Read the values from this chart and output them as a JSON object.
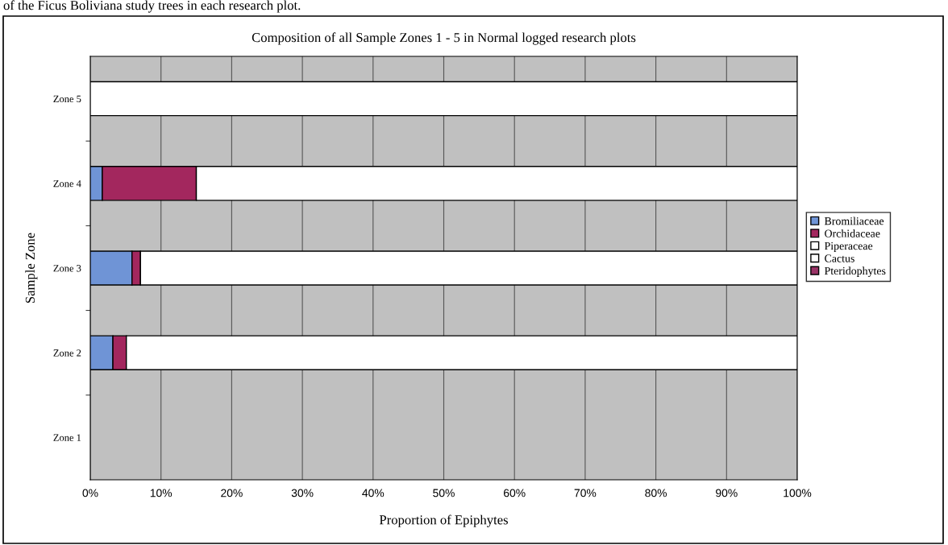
{
  "chart_data": {
    "type": "bar",
    "orientation": "horizontal",
    "stacked": true,
    "title": "Composition of all Sample Zones 1 - 5 in Normal logged research plots",
    "xlabel": "Proportion of Epiphytes",
    "ylabel": "Sample Zone",
    "annotations": [
      "of the Ficus Boliviana study trees in each research plot."
    ],
    "categories": [
      "Zone 5",
      "Zone 4",
      "Zone 3",
      "Zone 2",
      "Zone 1"
    ],
    "series": [
      {
        "name": "Bromiliaceae",
        "color": "#6f94d6",
        "values": [
          0,
          1.7,
          5.9,
          3.2,
          0
        ]
      },
      {
        "name": "Orchidaceae",
        "color": "#a3275e",
        "values": [
          0,
          13.3,
          1.2,
          1.9,
          0
        ]
      },
      {
        "name": "Piperaceae",
        "color": "#ffffff",
        "values": [
          100,
          85.0,
          92.9,
          94.9,
          0
        ]
      },
      {
        "name": "Cactus",
        "color": "#ffffff",
        "values": [
          0,
          0,
          0,
          0,
          0
        ]
      },
      {
        "name": "Pteridophytes",
        "color": "#993366",
        "values": [
          0,
          0,
          0,
          0,
          0
        ]
      }
    ],
    "xlim": [
      0,
      100
    ],
    "xticks": [
      {
        "value": 0,
        "label": "0%"
      },
      {
        "value": 10,
        "label": "10%"
      },
      {
        "value": 20,
        "label": "20%"
      },
      {
        "value": 30,
        "label": "30%"
      },
      {
        "value": 40,
        "label": "40%"
      },
      {
        "value": 50,
        "label": "50%"
      },
      {
        "value": 60,
        "label": "60%"
      },
      {
        "value": 70,
        "label": "70%"
      },
      {
        "value": 80,
        "label": "80%"
      },
      {
        "value": 90,
        "label": "90%"
      },
      {
        "value": 100,
        "label": "100%"
      }
    ],
    "grid": "x",
    "legend": "right"
  }
}
